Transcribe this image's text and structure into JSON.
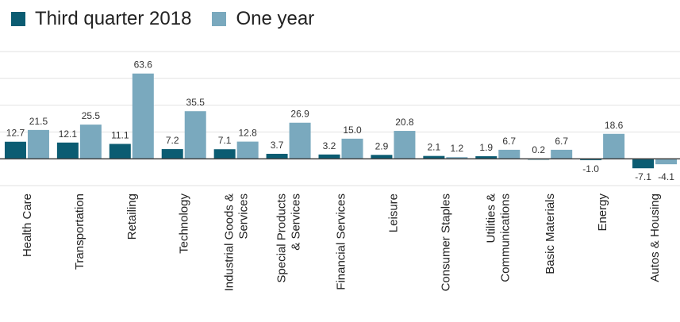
{
  "chart_data": {
    "type": "bar",
    "categories": [
      [
        "Health Care"
      ],
      [
        "Transportation"
      ],
      [
        "Retailing"
      ],
      [
        "Technology"
      ],
      [
        "Industrial Goods &",
        "Services"
      ],
      [
        "Special Products",
        "& Services"
      ],
      [
        "Financial Services"
      ],
      [
        "Leisure"
      ],
      [
        "Consumer Staples"
      ],
      [
        "Utilities &",
        "Communications"
      ],
      [
        "Basic Materials"
      ],
      [
        "Energy"
      ],
      [
        "Autos & Housing"
      ]
    ],
    "series": [
      {
        "name": "Third quarter 2018",
        "values": [
          12.7,
          12.1,
          11.1,
          7.2,
          7.1,
          3.7,
          3.2,
          2.9,
          2.1,
          1.9,
          0.2,
          -1.0,
          -7.1
        ]
      },
      {
        "name": "One year",
        "values": [
          21.5,
          25.5,
          63.6,
          35.5,
          12.8,
          26.9,
          15.0,
          20.8,
          1.2,
          6.7,
          6.7,
          18.6,
          -4.1
        ]
      }
    ],
    "value_labels": [
      [
        "12.7",
        "12.1",
        "11.1",
        "7.2",
        "7.1",
        "3.7",
        "3.2",
        "2.9",
        "2.1",
        "1.9",
        "0.2",
        "-1.0",
        "-7.1"
      ],
      [
        "21.5",
        "25.5",
        "63.6",
        "35.5",
        "12.8",
        "26.9",
        "15.0",
        "20.8",
        "1.2",
        "6.7",
        "6.7",
        "18.6",
        "-4.1"
      ]
    ],
    "ylim": [
      -20,
      80
    ],
    "gridlines": [
      -20,
      0,
      20,
      40,
      60,
      80
    ],
    "grid": true,
    "legend": "top-left",
    "colors": [
      "#0b5c72",
      "#7aa9be"
    ]
  }
}
